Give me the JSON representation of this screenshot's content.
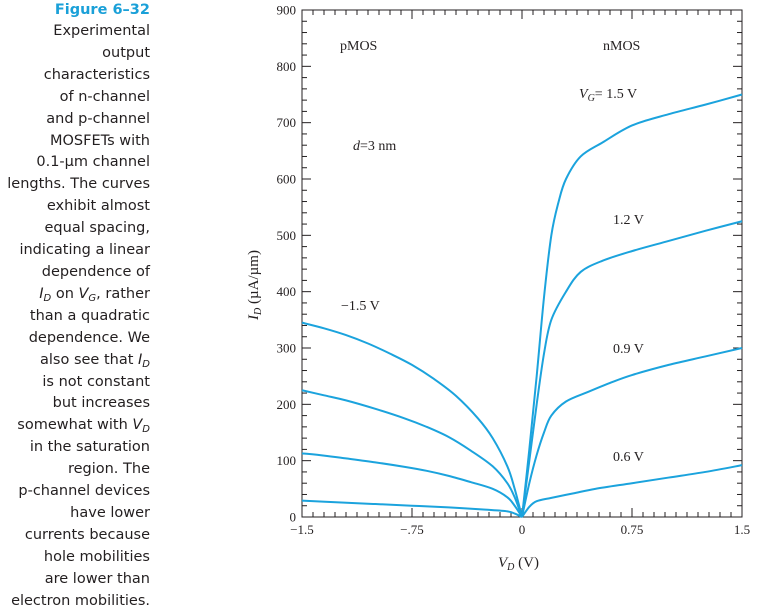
{
  "caption": {
    "figure_label": "Figure 6–32",
    "lines": [
      "Experimental",
      "output",
      "characteristics",
      "of n-channel",
      "and p-channel",
      "MOSFETs with",
      "0.1-µm channel",
      "lengths. The curves",
      "exhibit almost",
      "equal spacing,",
      "indicating a linear",
      "dependence of",
      "<i>I</i><sub><i>D</i></sub> on <i>V</i><sub><i>G</i></sub>, rather",
      "than a quadratic",
      "dependence. We",
      "also see that <i>I</i><sub><i>D</i></sub>",
      "is not constant",
      "but increases",
      "somewhat with <i>V</i><sub><i>D</i></sub>",
      "in the saturation",
      "region. The",
      "p-channel devices",
      "have lower",
      "currents because",
      "hole mobilities",
      "are lower than",
      "electron mobilities."
    ]
  },
  "chart_data": {
    "type": "line",
    "xlabel": "VD (V)",
    "ylabel": "ID (µA/µm)",
    "xlim": [
      -1.5,
      1.5
    ],
    "ylim": [
      0,
      900
    ],
    "x_ticks": [
      {
        "value": -1.5,
        "label": "−1.5"
      },
      {
        "value": -0.75,
        "label": "−.75"
      },
      {
        "value": 0,
        "label": "0"
      },
      {
        "value": 0.75,
        "label": "0.75"
      },
      {
        "value": 1.5,
        "label": "1.5"
      }
    ],
    "y_ticks": [
      0,
      100,
      200,
      300,
      400,
      500,
      600,
      700,
      800,
      900
    ],
    "line_color": "#1ba3dd",
    "annotations": {
      "pmos": "pMOS",
      "nmos": "nMOS",
      "oxide": "d=3 nm",
      "vg_p": "−1.5 V",
      "vg_15": "VG= 1.5 V",
      "vg_12": "1.2 V",
      "vg_09": "0.9 V",
      "vg_06": "0.6 V"
    },
    "series": [
      {
        "points": [
          [
            0,
            0
          ],
          [
            0.05,
            120
          ],
          [
            0.1,
            250
          ],
          [
            0.15,
            390
          ],
          [
            0.2,
            500
          ],
          [
            0.25,
            560
          ],
          [
            0.3,
            600
          ],
          [
            0.4,
            640
          ],
          [
            0.55,
            665
          ],
          [
            0.75,
            695
          ],
          [
            1.0,
            715
          ],
          [
            1.25,
            732
          ],
          [
            1.5,
            750
          ]
        ]
      },
      {
        "points": [
          [
            0,
            0
          ],
          [
            0.05,
            100
          ],
          [
            0.1,
            200
          ],
          [
            0.15,
            290
          ],
          [
            0.2,
            350
          ],
          [
            0.3,
            400
          ],
          [
            0.4,
            435
          ],
          [
            0.55,
            455
          ],
          [
            0.75,
            472
          ],
          [
            1.0,
            490
          ],
          [
            1.25,
            508
          ],
          [
            1.5,
            525
          ]
        ]
      },
      {
        "points": [
          [
            0,
            0
          ],
          [
            0.05,
            60
          ],
          [
            0.1,
            110
          ],
          [
            0.15,
            150
          ],
          [
            0.2,
            180
          ],
          [
            0.3,
            205
          ],
          [
            0.45,
            222
          ],
          [
            0.6,
            238
          ],
          [
            0.75,
            252
          ],
          [
            1.0,
            270
          ],
          [
            1.25,
            285
          ],
          [
            1.5,
            300
          ]
        ]
      },
      {
        "points": [
          [
            0,
            0
          ],
          [
            0.05,
            18
          ],
          [
            0.1,
            28
          ],
          [
            0.2,
            34
          ],
          [
            0.35,
            42
          ],
          [
            0.5,
            50
          ],
          [
            0.75,
            60
          ],
          [
            1.0,
            70
          ],
          [
            1.25,
            80
          ],
          [
            1.5,
            92
          ]
        ]
      },
      {
        "points": [
          [
            0,
            0
          ],
          [
            -0.05,
            50
          ],
          [
            -0.1,
            90
          ],
          [
            -0.2,
            140
          ],
          [
            -0.3,
            175
          ],
          [
            -0.45,
            215
          ],
          [
            -0.6,
            245
          ],
          [
            -0.75,
            270
          ],
          [
            -0.9,
            290
          ],
          [
            -1.05,
            308
          ],
          [
            -1.2,
            323
          ],
          [
            -1.35,
            335
          ],
          [
            -1.5,
            345
          ]
        ]
      },
      {
        "points": [
          [
            0,
            0
          ],
          [
            -0.05,
            35
          ],
          [
            -0.1,
            60
          ],
          [
            -0.2,
            90
          ],
          [
            -0.35,
            118
          ],
          [
            -0.5,
            142
          ],
          [
            -0.65,
            160
          ],
          [
            -0.8,
            175
          ],
          [
            -1.0,
            192
          ],
          [
            -1.2,
            207
          ],
          [
            -1.35,
            216
          ],
          [
            -1.5,
            225
          ]
        ]
      },
      {
        "points": [
          [
            0,
            0
          ],
          [
            -0.05,
            20
          ],
          [
            -0.1,
            35
          ],
          [
            -0.2,
            50
          ],
          [
            -0.35,
            62
          ],
          [
            -0.5,
            73
          ],
          [
            -0.65,
            82
          ],
          [
            -0.8,
            89
          ],
          [
            -1.0,
            97
          ],
          [
            -1.2,
            104
          ],
          [
            -1.35,
            109
          ],
          [
            -1.5,
            113
          ]
        ]
      },
      {
        "points": [
          [
            0,
            0
          ],
          [
            -0.05,
            6
          ],
          [
            -0.1,
            10
          ],
          [
            -0.25,
            13
          ],
          [
            -0.5,
            17
          ],
          [
            -0.75,
            20
          ],
          [
            -1.0,
            23
          ],
          [
            -1.25,
            26
          ],
          [
            -1.5,
            29
          ]
        ]
      }
    ]
  }
}
